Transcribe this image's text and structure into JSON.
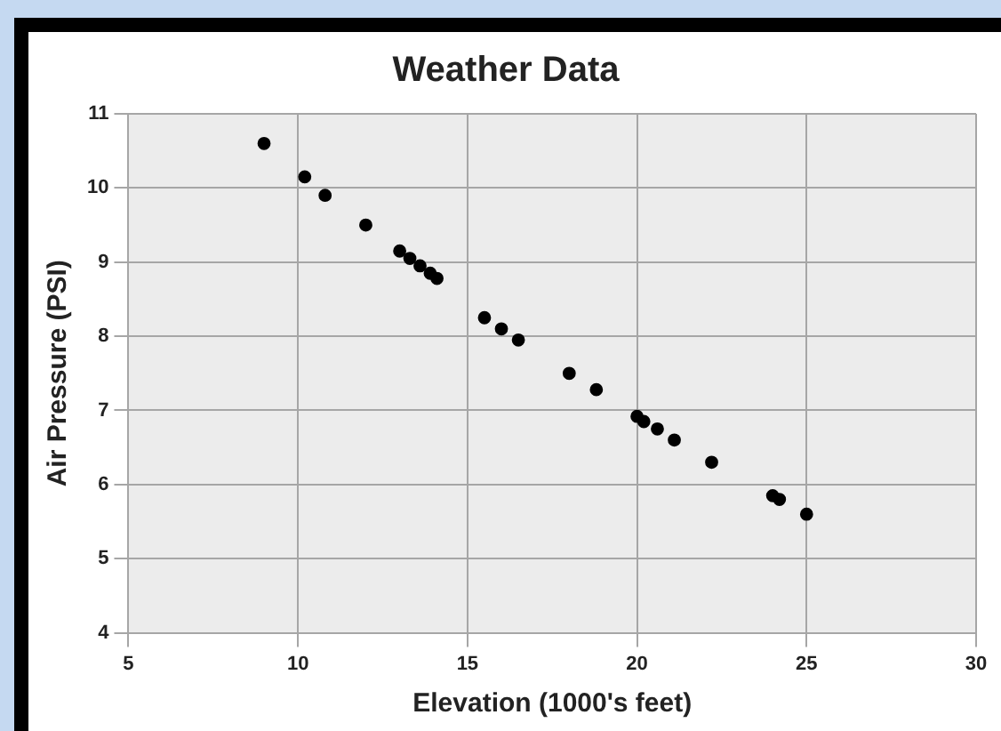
{
  "chart_data": {
    "type": "scatter",
    "title": "Weather Data",
    "xlabel": "Elevation (1000's feet)",
    "ylabel": "Air Pressure (PSI)",
    "x": [
      9,
      10.2,
      10.8,
      12,
      13,
      13.3,
      13.6,
      13.9,
      14.1,
      15.5,
      16,
      16.5,
      18,
      18.8,
      20,
      20.2,
      20.6,
      21.1,
      22.2,
      24,
      24.2,
      25
    ],
    "series": [
      {
        "color": "#000000",
        "values": [
          10.6,
          10.15,
          9.9,
          9.5,
          9.15,
          9.05,
          8.95,
          8.85,
          8.78,
          8.25,
          8.1,
          7.95,
          7.5,
          7.28,
          6.92,
          6.85,
          6.75,
          6.6,
          6.3,
          5.85,
          5.8,
          5.6
        ]
      }
    ],
    "xlim": [
      5,
      30
    ],
    "xticks": [
      5,
      10,
      15,
      20,
      25,
      30
    ],
    "ylim": [
      4,
      11
    ],
    "yticks": [
      4,
      5,
      6,
      7,
      8,
      9,
      10,
      11
    ],
    "grid": true,
    "legend": false,
    "marker": "circle"
  }
}
